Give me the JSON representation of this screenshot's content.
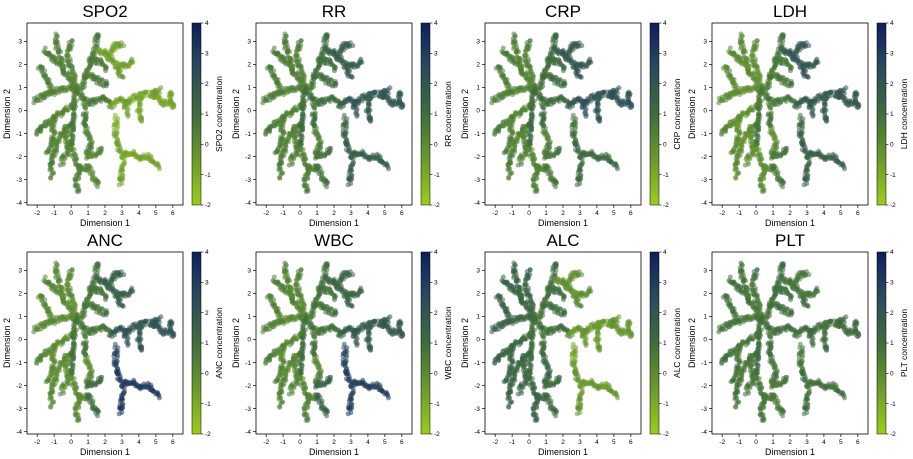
{
  "figure": {
    "colormap": [
      "#9acd1c",
      "#6b9a2c",
      "#3e6d3c",
      "#2c4a5e",
      "#0c1f5c"
    ]
  },
  "chart_data": [
    {
      "type": "scatter",
      "title": "SPO2",
      "xlabel": "Dimension 1",
      "ylabel": "Dimension 2",
      "colorbar_label": "SPO2 concentration",
      "xlim": [
        -2.6,
        6.6
      ],
      "ylim": [
        -4.1,
        3.8
      ],
      "xticks": [
        "-2",
        "-1",
        "0",
        "1",
        "2",
        "3",
        "4",
        "5",
        "6"
      ],
      "yticks": [
        "3",
        "2",
        "1",
        "0",
        "-1",
        "-2",
        "-3",
        "-4"
      ],
      "clim": [
        -2,
        4
      ],
      "cbar_ticks": [
        "4",
        "3",
        "2",
        "1",
        "0",
        "-1",
        "-2"
      ],
      "regions": {
        "left": 0.2,
        "center": 0.4,
        "upper_right": -0.8,
        "mid_right": -0.9,
        "lower_right": -1.0,
        "bottom": 0.0
      }
    },
    {
      "type": "scatter",
      "title": "RR",
      "xlabel": "Dimension 1",
      "ylabel": "Dimension 2",
      "colorbar_label": "RR concentration",
      "xlim": [
        -2.6,
        6.6
      ],
      "ylim": [
        -4.1,
        3.8
      ],
      "xticks": [
        "-2",
        "-1",
        "0",
        "1",
        "2",
        "3",
        "4",
        "5",
        "6"
      ],
      "yticks": [
        "3",
        "2",
        "1",
        "0",
        "-1",
        "-2",
        "-3",
        "-4"
      ],
      "clim": [
        -2,
        4
      ],
      "cbar_ticks": [
        "4",
        "3",
        "2",
        "1",
        "0",
        "-1",
        "-2"
      ],
      "regions": {
        "left": 0.3,
        "center": 0.8,
        "upper_right": 1.5,
        "mid_right": 1.8,
        "lower_right": 1.4,
        "bottom": 0.7
      }
    },
    {
      "type": "scatter",
      "title": "CRP",
      "xlabel": "Dimension 1",
      "ylabel": "Dimension 2",
      "colorbar_label": "CRP concentration",
      "xlim": [
        -2.6,
        6.6
      ],
      "ylim": [
        -4.1,
        3.8
      ],
      "xticks": [
        "-2",
        "-1",
        "0",
        "1",
        "2",
        "3",
        "4",
        "5",
        "6"
      ],
      "yticks": [
        "3",
        "2",
        "1",
        "0",
        "-1",
        "-2",
        "-3",
        "-4"
      ],
      "clim": [
        -2,
        4
      ],
      "cbar_ticks": [
        "4",
        "3",
        "2",
        "1",
        "0",
        "-1",
        "-2"
      ],
      "regions": {
        "left": 0.2,
        "center": 0.9,
        "upper_right": 1.7,
        "mid_right": 2.0,
        "lower_right": 0.9,
        "bottom": 0.6
      }
    },
    {
      "type": "scatter",
      "title": "LDH",
      "xlabel": "Dimension 1",
      "ylabel": "Dimension 2",
      "colorbar_label": "LDH concentration",
      "xlim": [
        -2.6,
        6.6
      ],
      "ylim": [
        -4.1,
        3.8
      ],
      "xticks": [
        "-2",
        "-1",
        "0",
        "1",
        "2",
        "3",
        "4",
        "5",
        "6"
      ],
      "yticks": [
        "3",
        "2",
        "1",
        "0",
        "-1",
        "-2",
        "-3",
        "-4"
      ],
      "clim": [
        -2,
        4
      ],
      "cbar_ticks": [
        "4",
        "3",
        "2",
        "1",
        "0",
        "-1",
        "-2"
      ],
      "regions": {
        "left": -0.2,
        "center": 0.5,
        "upper_right": 1.8,
        "mid_right": 1.7,
        "lower_right": 1.3,
        "bottom": 0.6
      }
    },
    {
      "type": "scatter",
      "title": "ANC",
      "xlabel": "Dimension 1",
      "ylabel": "Dimension 2",
      "colorbar_label": "ANC concentration",
      "xlim": [
        -2.6,
        6.6
      ],
      "ylim": [
        -4.1,
        3.8
      ],
      "xticks": [
        "-2",
        "-1",
        "0",
        "1",
        "2",
        "3",
        "4",
        "5",
        "6"
      ],
      "yticks": [
        "3",
        "2",
        "1",
        "0",
        "-1",
        "-2",
        "-3",
        "-4"
      ],
      "clim": [
        -2,
        4
      ],
      "cbar_ticks": [
        "4",
        "3",
        "2",
        "1",
        "0",
        "-1",
        "-2"
      ],
      "regions": {
        "left": -0.1,
        "center": 0.6,
        "upper_right": 1.4,
        "mid_right": 1.9,
        "lower_right": 2.8,
        "bottom": 1.0
      }
    },
    {
      "type": "scatter",
      "title": "WBC",
      "xlabel": "Dimension 1",
      "ylabel": "Dimension 2",
      "colorbar_label": "WBC concentration",
      "xlim": [
        -2.6,
        6.6
      ],
      "ylim": [
        -4.1,
        3.8
      ],
      "xticks": [
        "-2",
        "-1",
        "0",
        "1",
        "2",
        "3",
        "4",
        "5",
        "6"
      ],
      "yticks": [
        "3",
        "2",
        "1",
        "0",
        "-1",
        "-2",
        "-3",
        "-4"
      ],
      "clim": [
        -2,
        4
      ],
      "cbar_ticks": [
        "4",
        "3",
        "2",
        "1",
        "0",
        "-1",
        "-2"
      ],
      "regions": {
        "left": 0.1,
        "center": 0.7,
        "upper_right": 1.2,
        "mid_right": 1.7,
        "lower_right": 2.6,
        "bottom": 1.3
      }
    },
    {
      "type": "scatter",
      "title": "ALC",
      "xlabel": "Dimension 1",
      "ylabel": "Dimension 2",
      "colorbar_label": "ALC concentration",
      "xlim": [
        -2.6,
        6.6
      ],
      "ylim": [
        -4.1,
        3.8
      ],
      "xticks": [
        "-2",
        "-1",
        "0",
        "1",
        "2",
        "3",
        "4",
        "5",
        "6"
      ],
      "yticks": [
        "3",
        "2",
        "1",
        "0",
        "-1",
        "-2",
        "-3",
        "-4"
      ],
      "clim": [
        -2,
        4
      ],
      "cbar_ticks": [
        "4",
        "3",
        "2",
        "1",
        "0",
        "-1",
        "-2"
      ],
      "regions": {
        "left": 1.2,
        "center": 0.8,
        "upper_right": -0.3,
        "mid_right": -0.5,
        "lower_right": -0.6,
        "bottom": 0.9
      }
    },
    {
      "type": "scatter",
      "title": "PLT",
      "xlabel": "Dimension 1",
      "ylabel": "Dimension 2",
      "colorbar_label": "PLT concentration",
      "xlim": [
        -2.6,
        6.6
      ],
      "ylim": [
        -4.1,
        3.8
      ],
      "xticks": [
        "-2",
        "-1",
        "0",
        "1",
        "2",
        "3",
        "4",
        "5",
        "6"
      ],
      "yticks": [
        "3",
        "2",
        "1",
        "0",
        "-1",
        "-2",
        "-3",
        "-4"
      ],
      "clim": [
        -2,
        4
      ],
      "cbar_ticks": [
        "4",
        "3",
        "2",
        "1",
        "0",
        "-1",
        "-2"
      ],
      "regions": {
        "left": 0.6,
        "center": 0.8,
        "upper_right": 0.6,
        "mid_right": 0.9,
        "lower_right": 0.7,
        "bottom": 0.5
      }
    }
  ]
}
